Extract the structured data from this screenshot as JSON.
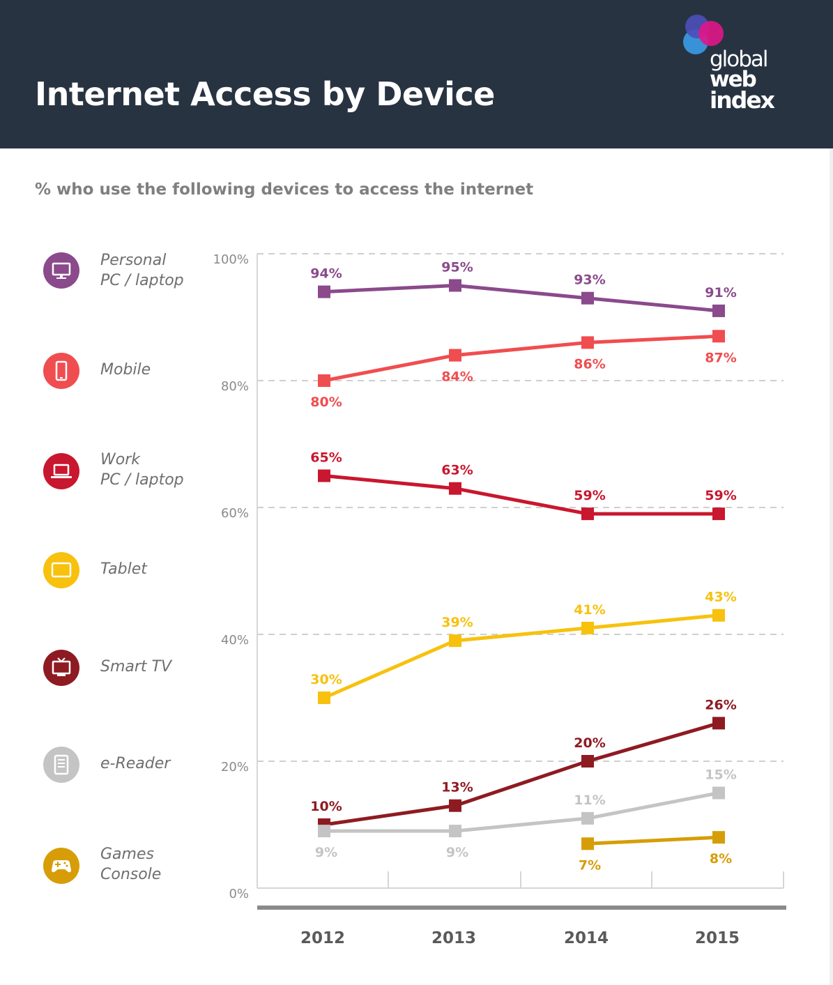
{
  "header": {
    "title": "Internet Access by Device",
    "logo": {
      "line1": "global",
      "line2": "web",
      "line3": "index"
    }
  },
  "subtitle": "% who use the following devices to access the internet",
  "legend": [
    {
      "label": "Personal\nPC / laptop",
      "icon": "monitor-icon",
      "color": "#8a4a8c"
    },
    {
      "label": "Mobile",
      "icon": "mobile-phone-icon",
      "color": "#f04d50"
    },
    {
      "label": "Work\nPC / laptop",
      "icon": "laptop-icon",
      "color": "#c8172e"
    },
    {
      "label": "Tablet",
      "icon": "tablet-icon",
      "color": "#f7c10e"
    },
    {
      "label": "Smart TV",
      "icon": "tv-icon",
      "color": "#8e1b22"
    },
    {
      "label": "e-Reader",
      "icon": "ereader-icon",
      "color": "#bdbdbd"
    },
    {
      "label": "Games\nConsole",
      "icon": "gamepad-icon",
      "color": "#d79d08"
    }
  ],
  "chart_data": {
    "type": "line",
    "categories": [
      "2012",
      "2013",
      "2014",
      "2015"
    ],
    "ylim": [
      0,
      100
    ],
    "yticks": [
      "0%",
      "20%",
      "40%",
      "60%",
      "80%",
      "100%"
    ],
    "grid": true,
    "series": [
      {
        "name": "Personal PC / laptop",
        "color": "#8a4a8c",
        "values": [
          94,
          95,
          93,
          91
        ],
        "labels": [
          "94%",
          "95%",
          "93%",
          "91%"
        ],
        "label_pos": [
          "above",
          "above",
          "above",
          "above"
        ]
      },
      {
        "name": "Mobile",
        "color": "#f04d50",
        "values": [
          80,
          84,
          86,
          87
        ],
        "labels": [
          "80%",
          "84%",
          "86%",
          "87%"
        ],
        "label_pos": [
          "below",
          "below",
          "below",
          "below"
        ]
      },
      {
        "name": "Work PC / laptop",
        "color": "#c8172e",
        "values": [
          65,
          63,
          59,
          59
        ],
        "labels": [
          "65%",
          "63%",
          "59%",
          "59%"
        ],
        "label_pos": [
          "above",
          "above",
          "above",
          "above"
        ]
      },
      {
        "name": "Tablet",
        "color": "#f7c10e",
        "values": [
          30,
          39,
          41,
          43
        ],
        "labels": [
          "30%",
          "39%",
          "41%",
          "43%"
        ],
        "label_pos": [
          "above",
          "above",
          "above",
          "above"
        ]
      },
      {
        "name": "Smart TV",
        "color": "#8e1b22",
        "values": [
          10,
          13,
          20,
          26
        ],
        "labels": [
          "10%",
          "13%",
          "20%",
          "26%"
        ],
        "label_pos": [
          "above",
          "above",
          "above",
          "above"
        ]
      },
      {
        "name": "e-Reader",
        "color": "#c4c4c4",
        "values": [
          9,
          9,
          11,
          15
        ],
        "labels": [
          "9%",
          "9%",
          "11%",
          "15%"
        ],
        "label_pos": [
          "below",
          "below",
          "above",
          "above"
        ]
      },
      {
        "name": "Games Console",
        "color": "#d79d08",
        "values": [
          null,
          null,
          7,
          8
        ],
        "labels": [
          null,
          null,
          "7%",
          "8%"
        ],
        "label_pos": [
          null,
          null,
          "below",
          "below"
        ]
      }
    ]
  }
}
